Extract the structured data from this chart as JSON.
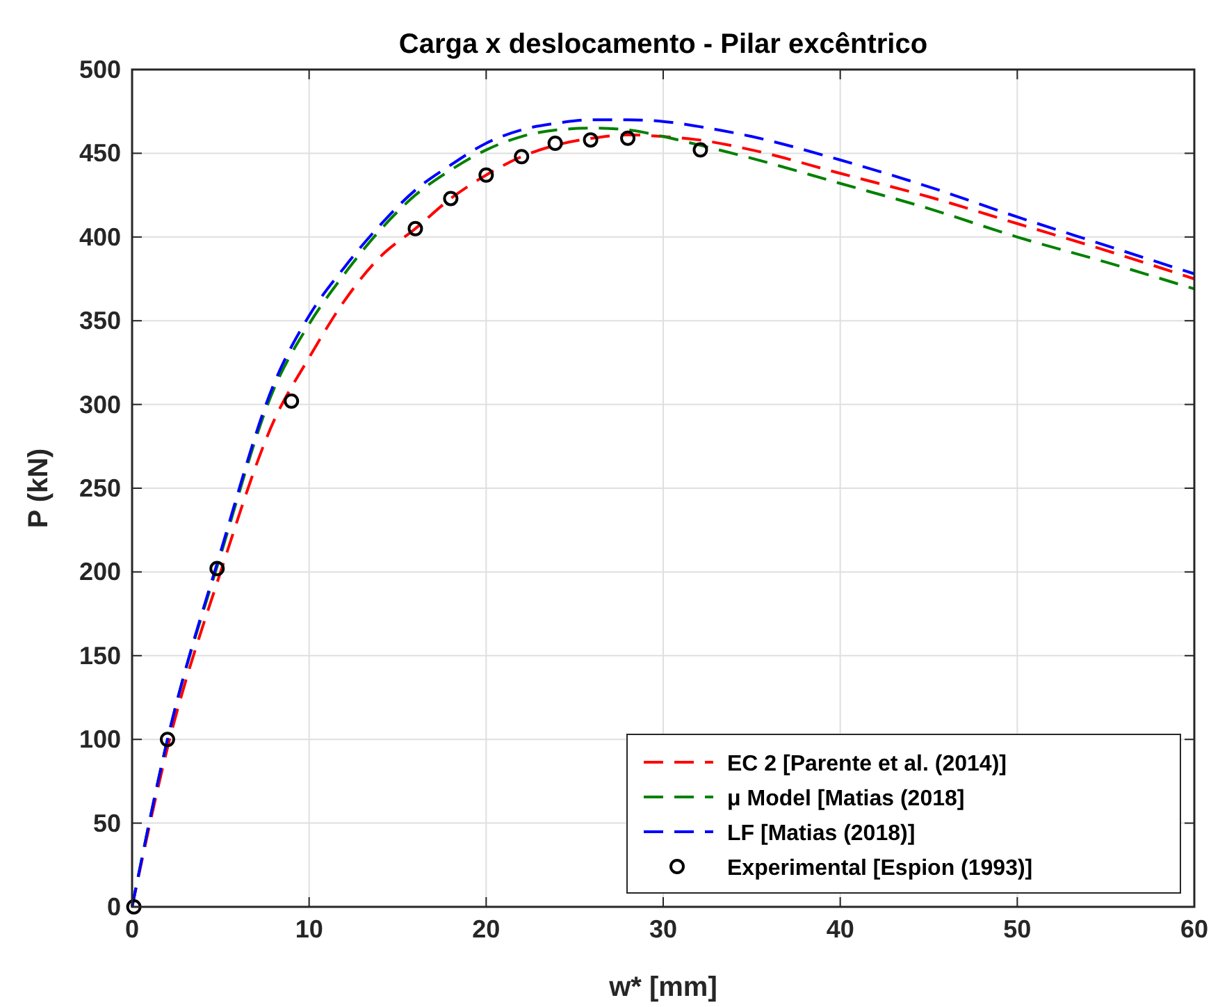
{
  "chart_data": {
    "type": "line",
    "title": "Carga x deslocamento - Pilar excêntrico",
    "xlabel": "w* [mm]",
    "ylabel": "P (kN)",
    "xlim": [
      0,
      60
    ],
    "ylim": [
      0,
      500
    ],
    "xticks": [
      0,
      10,
      20,
      30,
      40,
      50,
      60
    ],
    "yticks": [
      0,
      50,
      100,
      150,
      200,
      250,
      300,
      350,
      400,
      450,
      500
    ],
    "grid": true,
    "legend": "bottom right",
    "series": [
      {
        "name": "EC 2 [Parente et al. (2014)]",
        "color": "#ff0000",
        "line_style": "dashed",
        "marker": "none",
        "x": [
          0,
          2,
          5,
          8,
          10,
          12,
          14,
          16,
          18,
          20,
          22,
          24,
          26,
          28,
          30,
          32,
          35,
          40,
          45,
          50,
          55,
          60
        ],
        "values": [
          0,
          95,
          200,
          290,
          328,
          362,
          388,
          405,
          423,
          437,
          448,
          455,
          459,
          461,
          460,
          458,
          452,
          438,
          424,
          408,
          392,
          375
        ]
      },
      {
        "name": "μ Model [Matias (2018]",
        "color": "#008000",
        "line_style": "dashed",
        "marker": "none",
        "x": [
          0,
          2,
          5,
          8,
          10,
          12,
          14,
          16,
          18,
          20,
          22,
          24,
          26,
          28,
          30,
          32,
          35,
          40,
          45,
          50,
          55,
          60
        ],
        "values": [
          0,
          100,
          210,
          309,
          348,
          378,
          404,
          425,
          440,
          452,
          460,
          464,
          465,
          464,
          460,
          455,
          447,
          432,
          417,
          400,
          385,
          369
        ]
      },
      {
        "name": "LF [Matias (2018)]",
        "color": "#0000ff",
        "line_style": "dashed",
        "marker": "none",
        "x": [
          0,
          2,
          5,
          8,
          10,
          12,
          14,
          16,
          18,
          20,
          22,
          24,
          26,
          28,
          30,
          32,
          35,
          40,
          45,
          50,
          55,
          60
        ],
        "values": [
          0,
          100,
          212,
          312,
          353,
          382,
          407,
          428,
          443,
          456,
          464,
          468,
          470,
          470,
          469,
          466,
          460,
          446,
          430,
          412,
          395,
          378
        ]
      },
      {
        "name": "Experimental [Espion (1993)]",
        "type": "scatter",
        "color": "#000000",
        "marker": "circle",
        "x": [
          0.1,
          2,
          4.8,
          9,
          16,
          18,
          20,
          22,
          23.9,
          25.9,
          28,
          32.1
        ],
        "values": [
          0,
          100,
          202,
          302,
          405,
          423,
          437,
          448,
          456,
          458,
          459,
          452
        ]
      }
    ]
  }
}
